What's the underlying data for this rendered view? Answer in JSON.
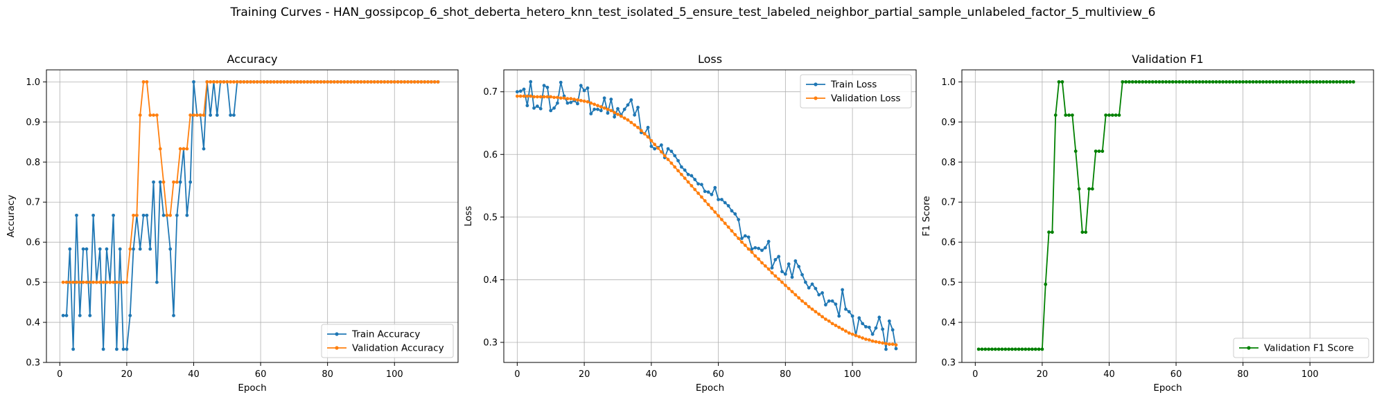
{
  "suptitle": "Training Curves - HAN_gossipcop_6_shot_deberta_hetero_knn_test_isolated_5_ensure_test_labeled_neighbor_partial_sample_unlabeled_factor_5_multiview_6",
  "chart_data": [
    {
      "type": "line",
      "title": "Accuracy",
      "xlabel": "Epoch",
      "ylabel": "Accuracy",
      "xlim": [
        -4,
        119
      ],
      "ylim": [
        0.3,
        1.03
      ],
      "xticks": [
        0,
        20,
        40,
        60,
        80,
        100
      ],
      "yticks": [
        0.3,
        0.4,
        0.5,
        0.6,
        0.7,
        0.8,
        0.9,
        1.0
      ],
      "grid": true,
      "legend_position": "lower-right",
      "x": "1..113 (epochs)",
      "series": [
        {
          "name": "Train Accuracy",
          "color": "#1f77b4",
          "values": [
            0.417,
            0.417,
            0.583,
            0.333,
            0.667,
            0.417,
            0.583,
            0.583,
            0.417,
            0.667,
            0.5,
            0.583,
            0.333,
            0.583,
            0.5,
            0.667,
            0.333,
            0.583,
            0.333,
            0.333,
            0.417,
            0.583,
            0.667,
            0.583,
            0.667,
            0.667,
            0.583,
            0.75,
            0.5,
            0.75,
            0.667,
            0.667,
            0.583,
            0.417,
            0.667,
            0.75,
            0.833,
            0.667,
            0.75,
            1.0,
            0.917,
            0.917,
            0.833,
            1.0,
            0.917,
            1.0,
            0.917,
            1.0,
            1.0,
            1.0,
            0.917,
            0.917,
            1.0,
            1.0,
            1.0,
            1.0,
            1.0,
            1.0,
            1.0,
            1.0,
            1.0,
            1.0,
            1.0,
            1.0,
            1.0,
            1.0,
            1.0,
            1.0,
            1.0,
            1.0,
            1.0,
            1.0,
            1.0,
            1.0,
            1.0,
            1.0,
            1.0,
            1.0,
            1.0,
            1.0,
            1.0,
            1.0,
            1.0,
            1.0,
            1.0,
            1.0,
            1.0,
            1.0,
            1.0,
            1.0,
            1.0,
            1.0,
            1.0,
            1.0,
            1.0,
            1.0,
            1.0,
            1.0,
            1.0,
            1.0,
            1.0,
            1.0,
            1.0,
            1.0,
            1.0,
            1.0,
            1.0,
            1.0,
            1.0,
            1.0,
            1.0,
            1.0,
            1.0
          ]
        },
        {
          "name": "Validation Accuracy",
          "color": "#ff7f0e",
          "values": [
            0.5,
            0.5,
            0.5,
            0.5,
            0.5,
            0.5,
            0.5,
            0.5,
            0.5,
            0.5,
            0.5,
            0.5,
            0.5,
            0.5,
            0.5,
            0.5,
            0.5,
            0.5,
            0.5,
            0.5,
            0.583,
            0.667,
            0.667,
            0.917,
            1.0,
            1.0,
            0.917,
            0.917,
            0.917,
            0.833,
            0.75,
            0.667,
            0.667,
            0.75,
            0.75,
            0.833,
            0.833,
            0.833,
            0.917,
            0.917,
            0.917,
            0.917,
            0.917,
            1.0,
            1.0,
            1.0,
            1.0,
            1.0,
            1.0,
            1.0,
            1.0,
            1.0,
            1.0,
            1.0,
            1.0,
            1.0,
            1.0,
            1.0,
            1.0,
            1.0,
            1.0,
            1.0,
            1.0,
            1.0,
            1.0,
            1.0,
            1.0,
            1.0,
            1.0,
            1.0,
            1.0,
            1.0,
            1.0,
            1.0,
            1.0,
            1.0,
            1.0,
            1.0,
            1.0,
            1.0,
            1.0,
            1.0,
            1.0,
            1.0,
            1.0,
            1.0,
            1.0,
            1.0,
            1.0,
            1.0,
            1.0,
            1.0,
            1.0,
            1.0,
            1.0,
            1.0,
            1.0,
            1.0,
            1.0,
            1.0,
            1.0,
            1.0,
            1.0,
            1.0,
            1.0,
            1.0,
            1.0,
            1.0,
            1.0,
            1.0,
            1.0,
            1.0,
            1.0
          ]
        }
      ]
    },
    {
      "type": "line",
      "title": "Loss",
      "xlabel": "Epoch",
      "ylabel": "Loss",
      "xlim": [
        -4,
        119
      ],
      "ylim": [
        0.268,
        0.735
      ],
      "xticks": [
        0,
        20,
        40,
        60,
        80,
        100
      ],
      "yticks": [
        0.3,
        0.4,
        0.5,
        0.6,
        0.7
      ],
      "grid": true,
      "legend_position": "upper-right",
      "x": "0..113 (epochs)",
      "series": [
        {
          "name": "Train Loss",
          "color": "#1f77b4",
          "values": [
            0.7,
            0.701,
            0.704,
            0.678,
            0.716,
            0.674,
            0.677,
            0.673,
            0.71,
            0.707,
            0.67,
            0.674,
            0.682,
            0.715,
            0.693,
            0.682,
            0.683,
            0.686,
            0.681,
            0.71,
            0.702,
            0.706,
            0.665,
            0.672,
            0.672,
            0.67,
            0.69,
            0.666,
            0.688,
            0.66,
            0.673,
            0.663,
            0.672,
            0.679,
            0.687,
            0.663,
            0.675,
            0.635,
            0.633,
            0.643,
            0.613,
            0.609,
            0.611,
            0.615,
            0.595,
            0.609,
            0.605,
            0.598,
            0.59,
            0.58,
            0.575,
            0.568,
            0.566,
            0.56,
            0.553,
            0.552,
            0.541,
            0.54,
            0.536,
            0.547,
            0.528,
            0.528,
            0.523,
            0.518,
            0.51,
            0.505,
            0.496,
            0.466,
            0.47,
            0.468,
            0.449,
            0.451,
            0.45,
            0.447,
            0.451,
            0.461,
            0.419,
            0.432,
            0.437,
            0.413,
            0.409,
            0.425,
            0.404,
            0.43,
            0.421,
            0.408,
            0.396,
            0.387,
            0.393,
            0.386,
            0.376,
            0.379,
            0.36,
            0.366,
            0.366,
            0.361,
            0.342,
            0.384,
            0.353,
            0.349,
            0.342,
            0.311,
            0.339,
            0.33,
            0.325,
            0.324,
            0.313,
            0.323,
            0.34,
            0.321,
            0.289,
            0.334,
            0.32,
            0.29
          ]
        },
        {
          "name": "Validation Loss",
          "color": "#ff7f0e",
          "values": [
            0.693,
            0.693,
            0.693,
            0.693,
            0.693,
            0.692,
            0.692,
            0.692,
            0.692,
            0.692,
            0.692,
            0.691,
            0.691,
            0.69,
            0.69,
            0.689,
            0.689,
            0.688,
            0.687,
            0.686,
            0.685,
            0.684,
            0.682,
            0.68,
            0.678,
            0.676,
            0.674,
            0.672,
            0.67,
            0.667,
            0.664,
            0.661,
            0.658,
            0.655,
            0.651,
            0.647,
            0.643,
            0.638,
            0.633,
            0.628,
            0.622,
            0.616,
            0.61,
            0.604,
            0.598,
            0.592,
            0.586,
            0.58,
            0.574,
            0.568,
            0.562,
            0.556,
            0.55,
            0.544,
            0.538,
            0.532,
            0.526,
            0.52,
            0.514,
            0.508,
            0.502,
            0.496,
            0.49,
            0.484,
            0.478,
            0.472,
            0.466,
            0.46,
            0.455,
            0.449,
            0.444,
            0.438,
            0.433,
            0.427,
            0.422,
            0.417,
            0.411,
            0.406,
            0.401,
            0.396,
            0.391,
            0.386,
            0.381,
            0.376,
            0.371,
            0.366,
            0.362,
            0.357,
            0.353,
            0.349,
            0.345,
            0.341,
            0.337,
            0.334,
            0.33,
            0.327,
            0.324,
            0.321,
            0.318,
            0.315,
            0.313,
            0.311,
            0.309,
            0.307,
            0.305,
            0.304,
            0.302,
            0.301,
            0.3,
            0.299,
            0.298,
            0.297,
            0.297,
            0.296
          ]
        }
      ]
    },
    {
      "type": "line",
      "title": "Validation F1",
      "xlabel": "Epoch",
      "ylabel": "F1 Score",
      "xlim": [
        -4,
        119
      ],
      "ylim": [
        0.3,
        1.03
      ],
      "xticks": [
        0,
        20,
        40,
        60,
        80,
        100
      ],
      "yticks": [
        0.3,
        0.4,
        0.5,
        0.6,
        0.7,
        0.8,
        0.9,
        1.0
      ],
      "grid": true,
      "legend_position": "lower-right",
      "x": "1..113 (epochs)",
      "series": [
        {
          "name": "Validation F1 Score",
          "color": "#008000",
          "values": [
            0.333,
            0.333,
            0.333,
            0.333,
            0.333,
            0.333,
            0.333,
            0.333,
            0.333,
            0.333,
            0.333,
            0.333,
            0.333,
            0.333,
            0.333,
            0.333,
            0.333,
            0.333,
            0.333,
            0.333,
            0.495,
            0.625,
            0.625,
            0.917,
            1.0,
            1.0,
            0.917,
            0.917,
            0.917,
            0.827,
            0.733,
            0.625,
            0.625,
            0.733,
            0.733,
            0.827,
            0.827,
            0.827,
            0.917,
            0.917,
            0.917,
            0.917,
            0.917,
            1.0,
            1.0,
            1.0,
            1.0,
            1.0,
            1.0,
            1.0,
            1.0,
            1.0,
            1.0,
            1.0,
            1.0,
            1.0,
            1.0,
            1.0,
            1.0,
            1.0,
            1.0,
            1.0,
            1.0,
            1.0,
            1.0,
            1.0,
            1.0,
            1.0,
            1.0,
            1.0,
            1.0,
            1.0,
            1.0,
            1.0,
            1.0,
            1.0,
            1.0,
            1.0,
            1.0,
            1.0,
            1.0,
            1.0,
            1.0,
            1.0,
            1.0,
            1.0,
            1.0,
            1.0,
            1.0,
            1.0,
            1.0,
            1.0,
            1.0,
            1.0,
            1.0,
            1.0,
            1.0,
            1.0,
            1.0,
            1.0,
            1.0,
            1.0,
            1.0,
            1.0,
            1.0,
            1.0,
            1.0,
            1.0,
            1.0,
            1.0,
            1.0,
            1.0,
            1.0
          ]
        }
      ]
    }
  ]
}
